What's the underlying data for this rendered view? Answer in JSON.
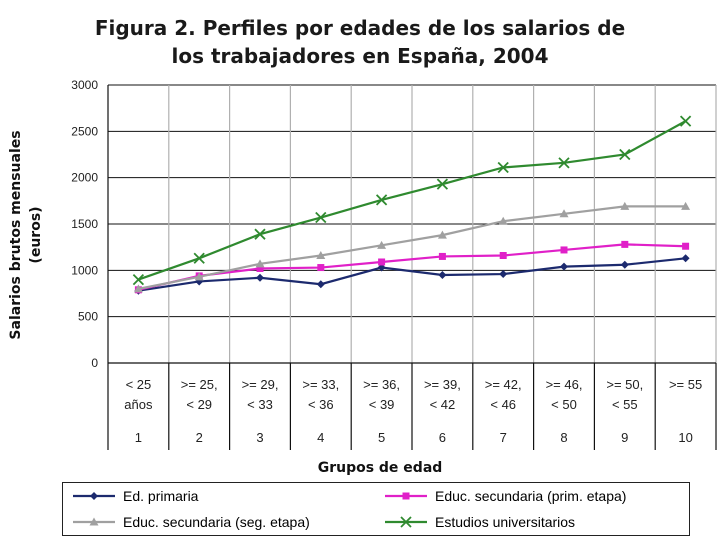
{
  "chart_data": {
    "type": "line",
    "title_lines": [
      "Figura 2. Perfiles por edades de los salarios de",
      "los trabajadores en España, 2004"
    ],
    "ylabel_lines": [
      "Salarios brutos mensuales",
      "(euros)"
    ],
    "xlabel": "Grupos de edad",
    "ylim": [
      0,
      3000
    ],
    "yticks": [
      "0",
      "500",
      "1000",
      "1500",
      "2000",
      "2500",
      "3000"
    ],
    "categories": [
      {
        "label_lines": [
          "< 25",
          "años"
        ],
        "number": "1"
      },
      {
        "label_lines": [
          ">= 25,",
          "< 29"
        ],
        "number": "2"
      },
      {
        "label_lines": [
          ">= 29,",
          "< 33"
        ],
        "number": "3"
      },
      {
        "label_lines": [
          ">= 33,",
          "< 36"
        ],
        "number": "4"
      },
      {
        "label_lines": [
          ">= 36,",
          "< 39"
        ],
        "number": "5"
      },
      {
        "label_lines": [
          ">= 39,",
          "< 42"
        ],
        "number": "6"
      },
      {
        "label_lines": [
          ">= 42,",
          "< 46"
        ],
        "number": "7"
      },
      {
        "label_lines": [
          ">= 46,",
          "< 50"
        ],
        "number": "8"
      },
      {
        "label_lines": [
          ">= 50,",
          "< 55"
        ],
        "number": "9"
      },
      {
        "label_lines": [
          ">= 55"
        ],
        "number": "10"
      }
    ],
    "grid": true,
    "legend_position": "bottom",
    "series": [
      {
        "name": "Ed. primaria",
        "color": "#1c2a6e",
        "marker": "diamond",
        "values": [
          780,
          880,
          920,
          850,
          1030,
          950,
          960,
          1040,
          1060,
          1130
        ]
      },
      {
        "name": "Educ. secundaria (prim. etapa)",
        "color": "#e020c8",
        "marker": "square",
        "values": [
          790,
          940,
          1020,
          1030,
          1090,
          1150,
          1160,
          1220,
          1280,
          1260
        ]
      },
      {
        "name": "Educ. secundaria (seg. etapa)",
        "color": "#a0a0a0",
        "marker": "triangle",
        "values": [
          800,
          930,
          1070,
          1160,
          1270,
          1380,
          1530,
          1610,
          1690,
          1690
        ]
      },
      {
        "name": "Estudios universitarios",
        "color": "#2f8a2f",
        "marker": "x",
        "values": [
          900,
          1130,
          1390,
          1570,
          1760,
          1930,
          2110,
          2160,
          2250,
          2610
        ]
      }
    ]
  }
}
